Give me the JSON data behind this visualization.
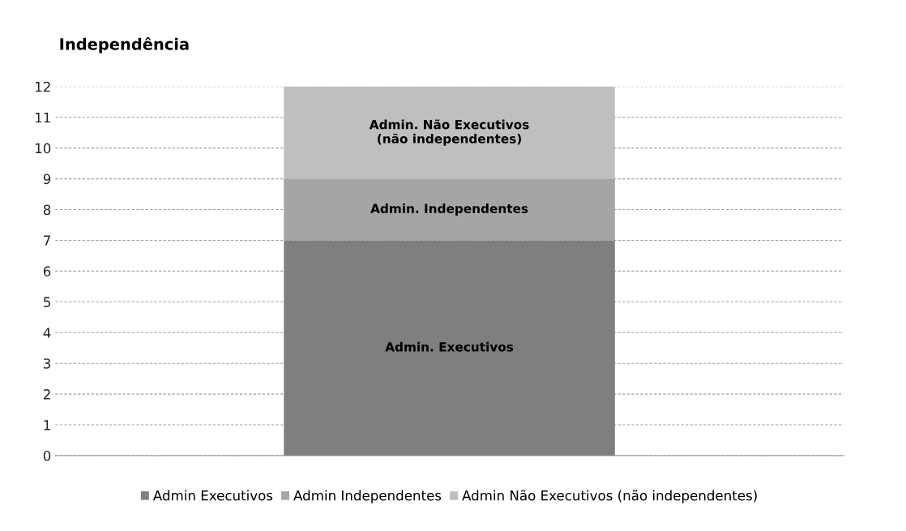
{
  "chart_data": {
    "type": "bar",
    "title": "Independência",
    "stacked": true,
    "categories": [
      null
    ],
    "series": [
      {
        "name": "Admin Executivos",
        "color": "#7f7f7f",
        "values": [
          7
        ],
        "value_labels": [
          "Admin. Executivos"
        ]
      },
      {
        "name": "Admin Independentes",
        "color": "#a5a5a5",
        "values": [
          2
        ],
        "value_labels": [
          "Admin. Independentes"
        ]
      },
      {
        "name": "Admin Não Executivos (não independentes)",
        "color": "#bfbfbf",
        "values": [
          3
        ],
        "value_labels": [
          "Admin. Não Executivos\n(não independentes)"
        ]
      }
    ],
    "ylim": [
      0,
      12
    ],
    "yticks": [
      0,
      1,
      2,
      3,
      4,
      5,
      6,
      7,
      8,
      9,
      10,
      11,
      12
    ],
    "grid": "y",
    "legend": "bottom"
  }
}
